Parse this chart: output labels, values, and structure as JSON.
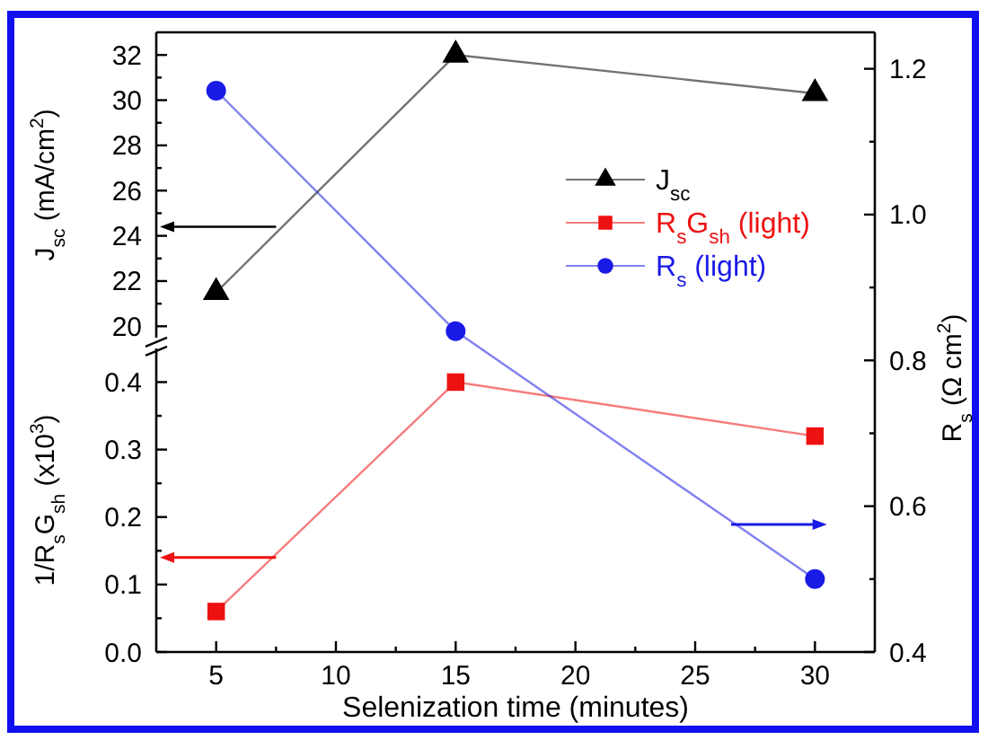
{
  "chart_data": [
    {
      "type": "line",
      "ylabel": "J$_{sc}$ (mA/cm$^{2}$)",
      "x": [
        5,
        15,
        30
      ],
      "xlim": [
        2.5,
        32.5
      ],
      "tick_labels": "y",
      "ylim": [
        19.5,
        33
      ],
      "yticks": [
        20,
        {
          "value": 21,
          "label": null
        },
        22,
        {
          "value": 23,
          "label": null
        },
        24,
        {
          "value": 25,
          "label": null
        },
        26,
        {
          "value": 27,
          "label": null
        },
        28,
        {
          "value": 29,
          "label": null
        },
        30,
        {
          "value": 31,
          "label": null
        },
        32
      ],
      "legend": "right",
      "series": [
        {
          "name": "J$_{sc}$",
          "color": "#000000",
          "marker": "triangle",
          "values": [
            21.5,
            32,
            30.3
          ]
        }
      ]
    },
    {
      "type": "line",
      "xlabel": "Selenization time (minutes)",
      "ylabel": "1/R$_{s}$G$_{sh}$ (x10$^{3}$)",
      "x": [
        5,
        15,
        30
      ],
      "xlim": [
        2.5,
        32.5
      ],
      "xticks": [
        5,
        {
          "value": 7.5,
          "label": null
        },
        10,
        {
          "value": 12.5,
          "label": null
        },
        15,
        {
          "value": 17.5,
          "label": null
        },
        20,
        {
          "value": 22.5,
          "label": null
        },
        25,
        {
          "value": 27.5,
          "label": null
        },
        30
      ],
      "ylim": [
        0,
        0.45
      ],
      "yticks": [
        {
          "value": 0,
          "label": "0.0"
        },
        {
          "value": 0.05,
          "label": null
        },
        0.1,
        {
          "value": 0.15,
          "label": null
        },
        0.2,
        {
          "value": 0.25,
          "label": null
        },
        0.3,
        {
          "value": 0.35,
          "label": null
        },
        0.4
      ],
      "legend": "right",
      "series": [
        {
          "name": "R$_{s}$G$_{sh}$ (light)",
          "color": "#ee1111",
          "marker": "square",
          "values": [
            0.06,
            0.4,
            0.32
          ]
        }
      ]
    },
    {
      "type": "line",
      "y2label": "R$_{s}$ (Ω cm$^{2}$)",
      "x": [
        5,
        15,
        30
      ],
      "xlim": [
        2.5,
        32.5
      ],
      "tick_labels": "y2",
      "y2lim": [
        0.4,
        1.25
      ],
      "y2ticks": [
        0.4,
        {
          "value": 0.5,
          "label": null
        },
        0.6,
        {
          "value": 0.7,
          "label": null
        },
        0.8,
        {
          "value": 0.9,
          "label": null
        },
        {
          "value": 1,
          "label": "1.0"
        },
        {
          "value": 1.1,
          "label": null
        },
        1.2
      ],
      "legend": "right",
      "series": [
        {
          "name": "R$_{s}$ (light)",
          "color": "#1a1ae6",
          "axis": "y2",
          "marker": "circle",
          "values": [
            1.17,
            0.84,
            0.5
          ]
        }
      ]
    }
  ]
}
